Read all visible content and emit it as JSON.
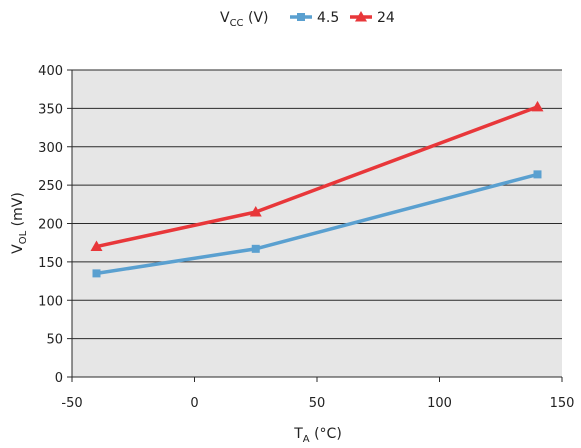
{
  "chart_data": {
    "type": "line",
    "legend": {
      "title": "V",
      "title_subscript": "CC",
      "title_unit": " (V)",
      "position": "top-center"
    },
    "x": [
      -40,
      25,
      140
    ],
    "series": [
      {
        "name": "4.5",
        "values": [
          135,
          167,
          264
        ],
        "color": "#5aa0d0",
        "marker": "square"
      },
      {
        "name": "24",
        "values": [
          170,
          215,
          352
        ],
        "color": "#e8373a",
        "marker": "triangle"
      }
    ],
    "xlabel": {
      "main": "T",
      "sub": "A",
      "unit": " (°C)"
    },
    "ylabel": {
      "main": "V",
      "sub": "OL",
      "unit": " (mV)"
    },
    "xlim": [
      -50,
      150
    ],
    "ylim": [
      0,
      400
    ],
    "xticks": [
      "-50",
      "0",
      "50",
      "100",
      "150"
    ],
    "yticks": [
      "0",
      "50",
      "100",
      "150",
      "200",
      "250",
      "300",
      "350",
      "400"
    ],
    "grid": true,
    "plot_background": "#e6e6e6"
  }
}
